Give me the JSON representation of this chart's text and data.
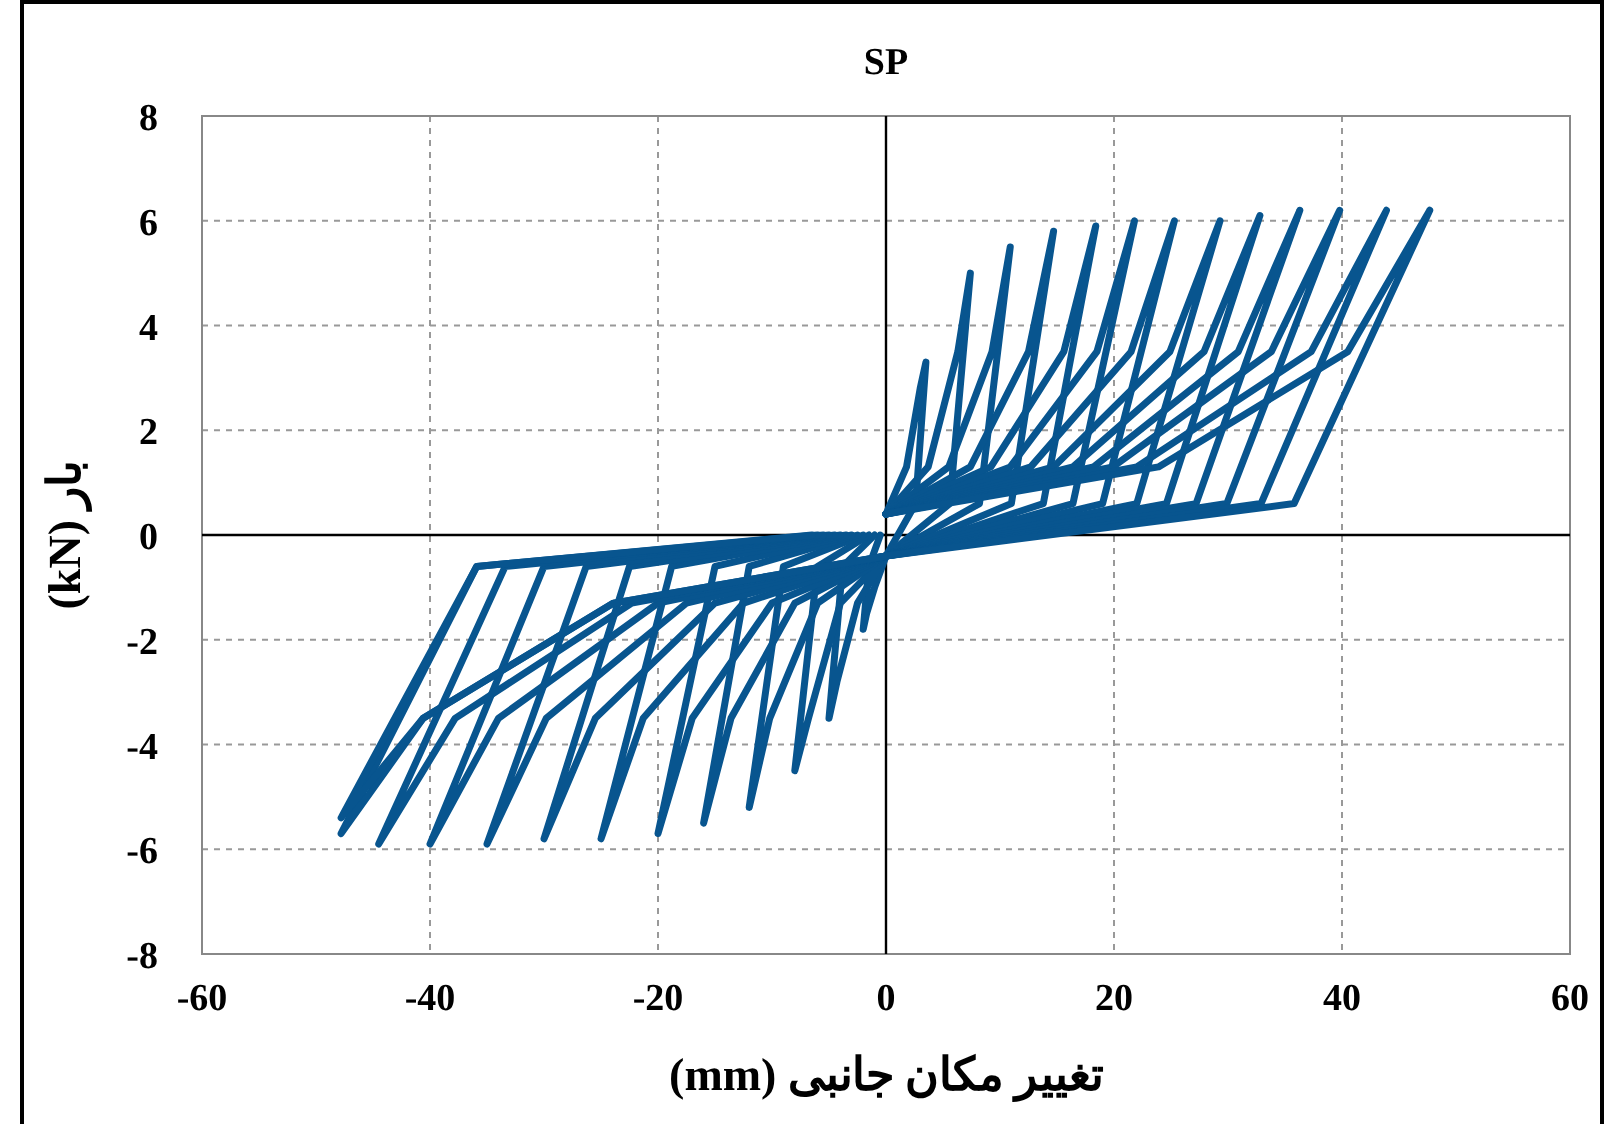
{
  "chart_data": {
    "type": "line",
    "title": "SP",
    "xlabel": "تغییر مکان جانبی (mm)",
    "ylabel": "بار (kN)",
    "xlim": [
      -60,
      60
    ],
    "xticks": [
      -60,
      -40,
      -20,
      0,
      20,
      40,
      60
    ],
    "ylim": [
      -8,
      8
    ],
    "yticks": [
      -8,
      -6,
      -4,
      -2,
      0,
      2,
      4,
      6,
      8
    ],
    "grid": true,
    "marker": "none",
    "line_style": "solid",
    "series": [
      {
        "color": "#08558f",
        "x": [
          0,
          1.8,
          3,
          3.5,
          2.6,
          0,
          -1,
          -1.7,
          -2,
          -1.5,
          -0.5
        ],
        "values": [
          0.4,
          1.3,
          2.8,
          3.3,
          0.6,
          -0.4,
          -1,
          -1.5,
          -1.8,
          -0.6,
          0
        ]
      },
      {
        "color": "#08558f",
        "x": [
          0,
          3.7,
          6.3,
          7.4,
          5.6,
          0,
          -2.5,
          -4.3,
          -5,
          -3.8,
          -1
        ],
        "values": [
          0.4,
          1.3,
          3.5,
          5.0,
          0.6,
          -0.4,
          -1.3,
          -2.8,
          -3.5,
          -0.6,
          0
        ]
      },
      {
        "color": "#08558f",
        "x": [
          0,
          5.5,
          9.3,
          10.9,
          8.2,
          0,
          -4,
          -6.8,
          -8,
          -6,
          -1.5
        ],
        "values": [
          0.4,
          1.3,
          3.5,
          5.5,
          0.6,
          -0.4,
          -1.3,
          -3.5,
          -4.5,
          -0.6,
          0
        ]
      },
      {
        "color": "#08558f",
        "x": [
          0,
          7.4,
          12.5,
          14.7,
          11,
          0,
          -6,
          -10.2,
          -12,
          -9,
          -2
        ],
        "values": [
          0.4,
          1.3,
          3.5,
          5.8,
          0.6,
          -0.4,
          -1.3,
          -3.5,
          -5.2,
          -0.6,
          0
        ]
      },
      {
        "color": "#08558f",
        "x": [
          0,
          9.2,
          15.6,
          18.4,
          13.8,
          0,
          -8,
          -13.6,
          -16,
          -12,
          -2.5
        ],
        "values": [
          0.4,
          1.3,
          3.5,
          5.9,
          0.6,
          -0.4,
          -1.3,
          -3.5,
          -5.5,
          -0.6,
          0
        ]
      },
      {
        "color": "#08558f",
        "x": [
          0,
          10.9,
          18.5,
          21.8,
          16.4,
          0,
          -10,
          -17,
          -20,
          -15,
          -3
        ],
        "values": [
          0.4,
          1.3,
          3.5,
          6.0,
          0.6,
          -0.4,
          -1.3,
          -3.5,
          -5.7,
          -0.6,
          0
        ]
      },
      {
        "color": "#08558f",
        "x": [
          0,
          12.7,
          21.5,
          25.3,
          19,
          0,
          -12.5,
          -21.3,
          -25,
          -18.8,
          -3.5
        ],
        "values": [
          0.4,
          1.3,
          3.5,
          6.0,
          0.6,
          -0.4,
          -1.3,
          -3.5,
          -5.8,
          -0.6,
          0
        ]
      },
      {
        "color": "#08558f",
        "x": [
          0,
          14.7,
          24.9,
          29.3,
          22,
          0,
          -15,
          -25.5,
          -30,
          -22.5,
          -4
        ],
        "values": [
          0.4,
          1.3,
          3.5,
          6.0,
          0.6,
          -0.4,
          -1.3,
          -3.5,
          -5.8,
          -0.6,
          0
        ]
      },
      {
        "color": "#08558f",
        "x": [
          0,
          16.4,
          27.9,
          32.8,
          24.6,
          0,
          -17.5,
          -29.8,
          -35,
          -26.3,
          -4.5
        ],
        "values": [
          0.4,
          1.3,
          3.5,
          6.1,
          0.6,
          -0.4,
          -1.3,
          -3.5,
          -5.9,
          -0.6,
          0
        ]
      },
      {
        "color": "#08558f",
        "x": [
          0,
          18.2,
          30.9,
          36.3,
          27.2,
          0,
          -20,
          -34,
          -40,
          -30,
          -5
        ],
        "values": [
          0.4,
          1.3,
          3.5,
          6.2,
          0.6,
          -0.4,
          -1.3,
          -3.5,
          -5.9,
          -0.6,
          0
        ]
      },
      {
        "color": "#08558f",
        "x": [
          0,
          19.9,
          33.8,
          39.8,
          29.9,
          0,
          -22.3,
          -37.8,
          -44.5,
          -33.4,
          -5.5
        ],
        "values": [
          0.4,
          1.3,
          3.5,
          6.2,
          0.6,
          -0.4,
          -1.3,
          -3.5,
          -5.9,
          -0.6,
          0
        ]
      },
      {
        "color": "#08558f",
        "x": [
          0,
          22,
          37.3,
          43.9,
          32.9,
          0,
          -23.9,
          -40.6,
          -47.8,
          -35.9,
          -6
        ],
        "values": [
          0.4,
          1.3,
          3.5,
          6.2,
          0.6,
          -0.4,
          -1.3,
          -3.5,
          -5.7,
          -0.6,
          0
        ]
      },
      {
        "color": "#08558f",
        "x": [
          0,
          23.9,
          40.5,
          47.7,
          35.8,
          0,
          -23.9,
          -40.6,
          -47.8,
          -35.9,
          -6.5
        ],
        "values": [
          0.4,
          1.3,
          3.5,
          6.2,
          0.6,
          -0.4,
          -1.3,
          -3.5,
          -5.4,
          -0.6,
          0
        ]
      }
    ]
  }
}
